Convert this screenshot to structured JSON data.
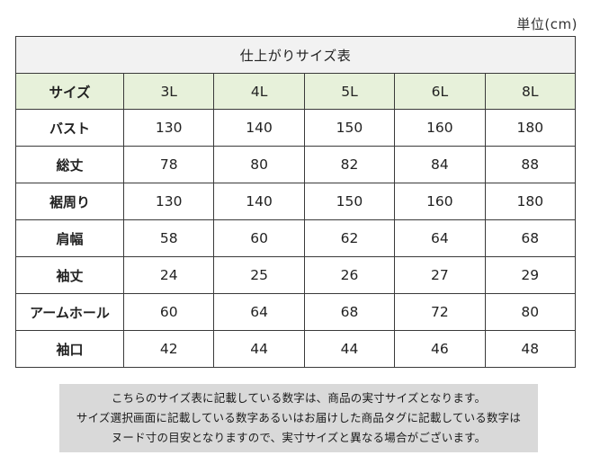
{
  "unit_label": "単位(cm)",
  "table": {
    "title": "仕上がりサイズ表",
    "header_label": "サイズ",
    "sizes": [
      "3L",
      "4L",
      "5L",
      "6L",
      "8L"
    ],
    "rows": [
      {
        "label": "バスト",
        "values": [
          "130",
          "140",
          "150",
          "160",
          "180"
        ]
      },
      {
        "label": "総丈",
        "values": [
          "78",
          "80",
          "82",
          "84",
          "88"
        ]
      },
      {
        "label": "裾周り",
        "values": [
          "130",
          "140",
          "150",
          "160",
          "180"
        ]
      },
      {
        "label": "肩幅",
        "values": [
          "58",
          "60",
          "62",
          "64",
          "68"
        ]
      },
      {
        "label": "袖丈",
        "values": [
          "24",
          "25",
          "26",
          "27",
          "29"
        ]
      },
      {
        "label": "アームホール",
        "values": [
          "60",
          "64",
          "68",
          "72",
          "80"
        ]
      },
      {
        "label": "袖口",
        "values": [
          "42",
          "44",
          "44",
          "46",
          "48"
        ]
      }
    ]
  },
  "notes": [
    "こちらのサイズ表に記載している数字は、商品の実寸サイズとなります。",
    "サイズ選択画面に記載している数字あるいはお届けした商品タグに記載している数字は",
    "ヌード寸の目安となりますので、実寸サイズと異なる場合がございます。"
  ],
  "colors": {
    "header_bg": "#e7f1da",
    "title_bg": "#f2f2f2",
    "note_bg": "#d9d9d9",
    "border": "#3a3a3a"
  }
}
